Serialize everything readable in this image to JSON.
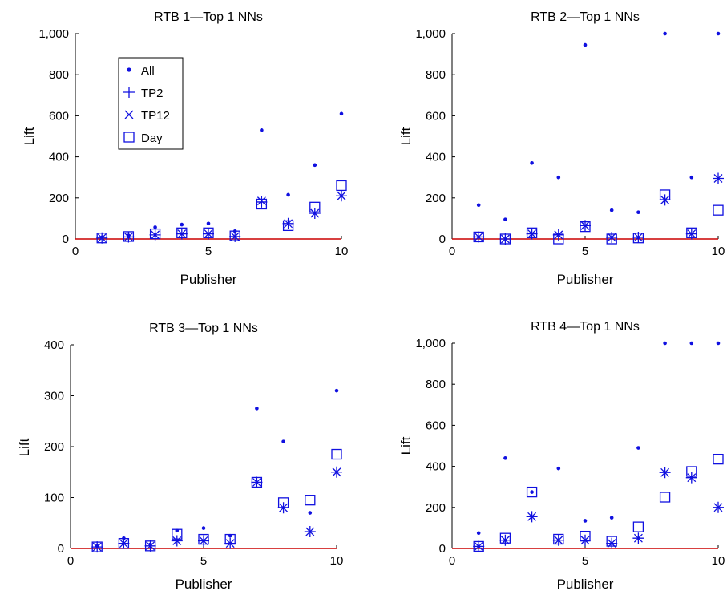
{
  "chart_data": [
    {
      "type": "scatter",
      "title": "RTB 1—Top 1 NNs",
      "xlabel": "Publisher",
      "ylabel": "Lift",
      "xlim": [
        0,
        10
      ],
      "ylim": [
        0,
        1000
      ],
      "xticks": [
        "0",
        "5",
        "10"
      ],
      "yticks": [
        "0",
        "200",
        "400",
        "600",
        "800",
        "1,000"
      ],
      "legend_position": "top-left",
      "x": [
        1,
        2,
        3,
        4,
        5,
        6,
        7,
        8,
        9,
        10
      ],
      "series": [
        {
          "name": "All",
          "marker": "dot",
          "values": [
            8,
            17,
            57,
            70,
            75,
            38,
            530,
            215,
            360,
            610
          ]
        },
        {
          "name": "TP2",
          "marker": "plus",
          "values": [
            5,
            10,
            20,
            25,
            25,
            12,
            180,
            75,
            125,
            210
          ]
        },
        {
          "name": "TP12",
          "marker": "cross",
          "values": [
            5,
            10,
            20,
            25,
            25,
            12,
            185,
            75,
            125,
            210
          ]
        },
        {
          "name": "Day",
          "marker": "square",
          "values": [
            5,
            12,
            25,
            30,
            30,
            15,
            170,
            65,
            155,
            260
          ]
        }
      ],
      "baseline": 0,
      "colors": {
        "markers": "#1010e0",
        "baseline": "#cc0000"
      }
    },
    {
      "type": "scatter",
      "title": "RTB 2—Top 1 NNs",
      "xlabel": "Publisher",
      "ylabel": "Lift",
      "xlim": [
        0,
        10
      ],
      "ylim": [
        0,
        1000
      ],
      "xticks": [
        "0",
        "5",
        "10"
      ],
      "yticks": [
        "0",
        "200",
        "400",
        "600",
        "800",
        "1,000"
      ],
      "x": [
        1,
        2,
        3,
        4,
        5,
        6,
        7,
        8,
        9,
        10
      ],
      "series": [
        {
          "name": "All",
          "marker": "dot",
          "values": [
            165,
            95,
            370,
            300,
            945,
            140,
            130,
            1000,
            300,
            1000
          ]
        },
        {
          "name": "TP2",
          "marker": "plus",
          "values": [
            10,
            0,
            25,
            20,
            65,
            8,
            8,
            190,
            25,
            295
          ]
        },
        {
          "name": "TP12",
          "marker": "cross",
          "values": [
            10,
            0,
            25,
            20,
            65,
            8,
            8,
            190,
            25,
            295
          ]
        },
        {
          "name": "Day",
          "marker": "square",
          "values": [
            10,
            0,
            30,
            0,
            60,
            0,
            5,
            215,
            30,
            140
          ]
        }
      ],
      "baseline": 0,
      "colors": {
        "markers": "#1010e0",
        "baseline": "#cc0000"
      }
    },
    {
      "type": "scatter",
      "title": "RTB 3—Top 1 NNs",
      "xlabel": "Publisher",
      "ylabel": "Lift",
      "xlim": [
        0,
        10
      ],
      "ylim": [
        0,
        400
      ],
      "xticks": [
        "0",
        "5",
        "10"
      ],
      "yticks": [
        "0",
        "100",
        "200",
        "300",
        "400"
      ],
      "x": [
        1,
        2,
        3,
        4,
        5,
        6,
        7,
        8,
        9,
        10
      ],
      "series": [
        {
          "name": "All",
          "marker": "dot",
          "values": [
            5,
            20,
            8,
            35,
            40,
            25,
            275,
            210,
            70,
            310
          ]
        },
        {
          "name": "TP2",
          "marker": "plus",
          "values": [
            3,
            10,
            5,
            15,
            15,
            10,
            130,
            80,
            33,
            150
          ]
        },
        {
          "name": "TP12",
          "marker": "cross",
          "values": [
            3,
            10,
            5,
            15,
            15,
            10,
            130,
            80,
            33,
            150
          ]
        },
        {
          "name": "Day",
          "marker": "square",
          "values": [
            3,
            10,
            5,
            28,
            18,
            18,
            130,
            90,
            95,
            185
          ]
        }
      ],
      "baseline": 0,
      "colors": {
        "markers": "#1010e0",
        "baseline": "#cc0000"
      }
    },
    {
      "type": "scatter",
      "title": "RTB 4—Top 1 NNs",
      "xlabel": "Publisher",
      "ylabel": "Lift",
      "xlim": [
        0,
        10
      ],
      "ylim": [
        0,
        1000
      ],
      "xticks": [
        "0",
        "5",
        "10"
      ],
      "yticks": [
        "0",
        "200",
        "400",
        "600",
        "800",
        "1,000"
      ],
      "x": [
        1,
        2,
        3,
        4,
        5,
        6,
        7,
        8,
        9,
        10
      ],
      "series": [
        {
          "name": "All",
          "marker": "dot",
          "values": [
            75,
            440,
            275,
            390,
            135,
            150,
            490,
            1000,
            1000,
            1000
          ]
        },
        {
          "name": "TP2",
          "marker": "plus",
          "values": [
            10,
            40,
            155,
            40,
            40,
            25,
            50,
            370,
            345,
            200
          ]
        },
        {
          "name": "TP12",
          "marker": "cross",
          "values": [
            10,
            40,
            155,
            40,
            40,
            25,
            50,
            370,
            345,
            200
          ]
        },
        {
          "name": "Day",
          "marker": "square",
          "values": [
            10,
            50,
            275,
            45,
            60,
            35,
            105,
            250,
            375,
            435
          ]
        }
      ],
      "baseline": 0,
      "colors": {
        "markers": "#1010e0",
        "baseline": "#cc0000"
      }
    }
  ]
}
